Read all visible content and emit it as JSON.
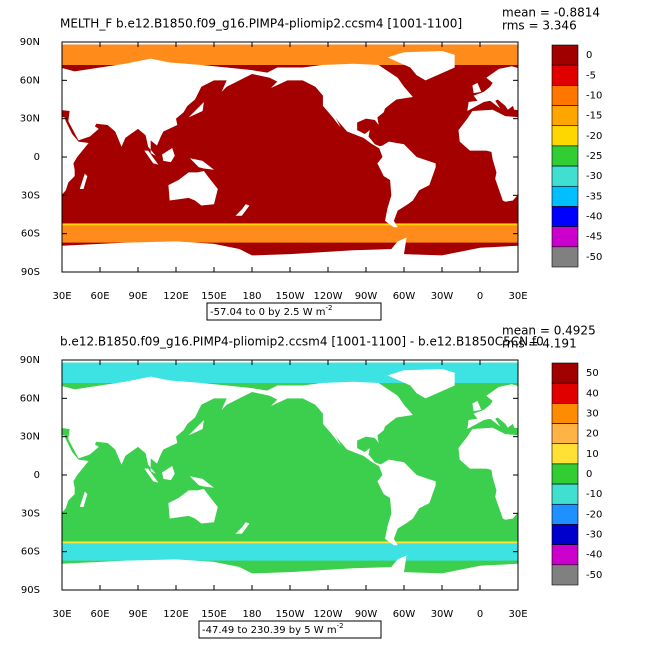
{
  "panels": [
    {
      "title": "MELTH_F b.e12.B1850.f09_g16.PIMP4-pliomip2.ccsm4 [1001-1100]",
      "mean": "mean = -0.8814",
      "rms": "rms = 3.346",
      "x_labels": [
        "30E",
        "60E",
        "90E",
        "120E",
        "150E",
        "180",
        "150W",
        "120W",
        "90W",
        "60W",
        "30W",
        "0",
        "30E"
      ],
      "y_labels": [
        "90N",
        "60N",
        "30N",
        "0",
        "30S",
        "60S",
        "90S"
      ],
      "contour_info": "-57.04 to 0 by 2.5  W m",
      "units_exponent": "-2",
      "colorbar": {
        "labels": [
          0,
          -5,
          -10,
          -15,
          -20,
          -25,
          -30,
          -35,
          -40,
          -45,
          -50
        ],
        "colors": [
          "#a00000",
          "#e00000",
          "#ff7700",
          "#ffa500",
          "#ffd700",
          "#32cd32",
          "#40e0d0",
          "#00bfff",
          "#0000ff",
          "#cc00cc",
          "#808080"
        ]
      },
      "ocean_color": "#a50000",
      "polar_color": "#ff8c1a"
    },
    {
      "title": "b.e12.B1850.f09_g16.PIMP4-pliomip2.ccsm4 [1001-1100] - b.e12.B1850C5CN.f0",
      "mean": "mean = 0.4925",
      "rms": "rms = 4.191",
      "x_labels": [
        "30E",
        "60E",
        "90E",
        "120E",
        "150E",
        "180",
        "150W",
        "120W",
        "90W",
        "60W",
        "30W",
        "0",
        "30E"
      ],
      "y_labels": [
        "90N",
        "60N",
        "30N",
        "0",
        "30S",
        "60S",
        "90S"
      ],
      "contour_info": "-47.49 to 230.39 by 5  W m",
      "units_exponent": "-2",
      "colorbar": {
        "labels": [
          50,
          40,
          30,
          20,
          10,
          0,
          -10,
          -20,
          -30,
          -40,
          -50
        ],
        "colors": [
          "#a00000",
          "#e00000",
          "#ff8c00",
          "#ffb347",
          "#ffe135",
          "#32cd32",
          "#40e0d0",
          "#1e90ff",
          "#0000cd",
          "#cc00cc",
          "#808080"
        ]
      },
      "ocean_color": "#3ccf4e",
      "polar_color": "#3de3e3"
    }
  ]
}
